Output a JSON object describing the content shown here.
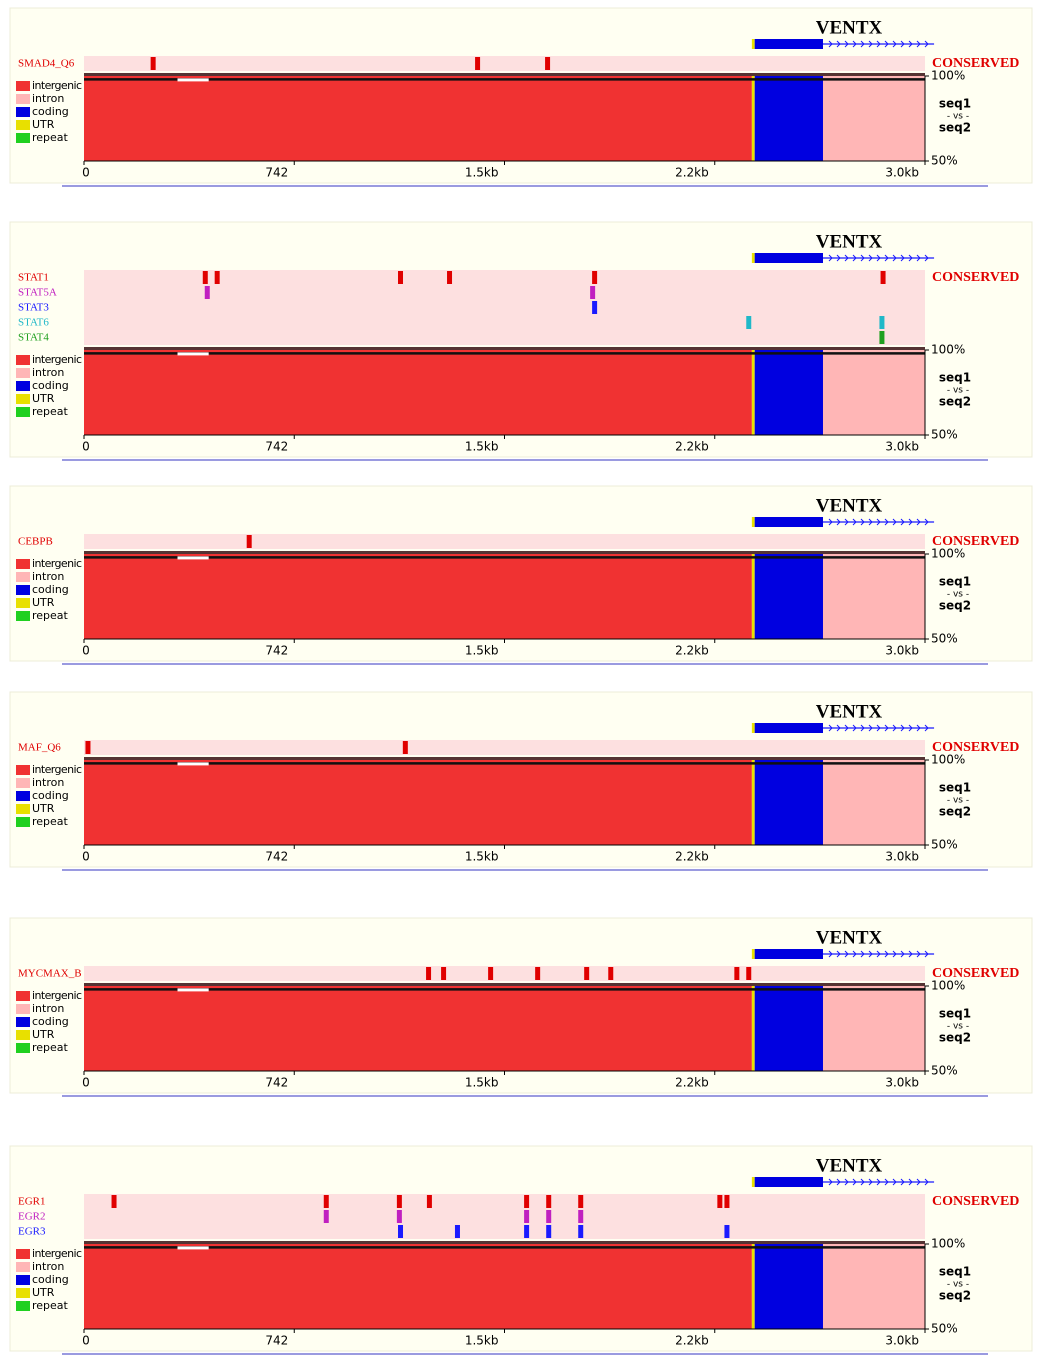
{
  "gene": {
    "name": "VENTX",
    "utr": [
      2357,
      2367
    ],
    "exon": [
      2367,
      2608
    ],
    "end": 3000
  },
  "legend": [
    {
      "label": "intergenic",
      "color": "#f03232"
    },
    {
      "label": "intron",
      "color": "#ffb6b6"
    },
    {
      "label": "coding",
      "color": "#0000e0"
    },
    {
      "label": "UTR",
      "color": "#e8e000"
    },
    {
      "label": "repeat",
      "color": "#20d020"
    }
  ],
  "xlim": [
    0,
    2968
  ],
  "xticks": [
    0,
    742,
    {
      "value": 1484,
      "label": "1.5kb"
    },
    {
      "value": 2226,
      "label": "2.2kb"
    },
    {
      "value": 2968,
      "label": "3.0kb"
    }
  ],
  "ylim": [
    50,
    100
  ],
  "yticks": [
    {
      "value": 100,
      "label": "100%"
    },
    {
      "value": 50,
      "label": "50%"
    }
  ],
  "conserved_label": "CONSERVED",
  "seq1": "seq1",
  "vs": "- vs -",
  "seq2": "seq2",
  "conservation": {
    "value": 98,
    "segments": [
      {
        "legend": 0,
        "start": 0,
        "end": 2357
      },
      {
        "legend": 3,
        "start": 2357,
        "end": 2367
      },
      {
        "legend": 2,
        "start": 2367,
        "end": 2608
      },
      {
        "legend": 1,
        "start": 2608,
        "end": 2968
      }
    ]
  },
  "panels": [
    {
      "tracks": [
        {
          "name": "SMAD4_Q6",
          "color": "#e00000",
          "sites": [
            244,
            1389,
            1636
          ]
        }
      ]
    },
    {
      "tracks": [
        {
          "name": "STAT1",
          "color": "#e00000",
          "sites": [
            428,
            470,
            1117,
            1290,
            1802,
            2820
          ]
        },
        {
          "name": "STAT5A",
          "color": "#c020c0",
          "sites": [
            435,
            1795
          ]
        },
        {
          "name": "STAT3",
          "color": "#1a1aff",
          "sites": [
            1802
          ]
        },
        {
          "name": "STAT6",
          "color": "#20b8c8",
          "sites": [
            2346,
            2816
          ]
        },
        {
          "name": "STAT4",
          "color": "#20a020",
          "sites": [
            2816
          ]
        }
      ]
    },
    {
      "tracks": [
        {
          "name": "CEBPB",
          "color": "#e00000",
          "sites": [
            583
          ]
        }
      ]
    },
    {
      "tracks": [
        {
          "name": "MAF_Q6",
          "color": "#e00000",
          "sites": [
            14,
            1134
          ]
        }
      ]
    },
    {
      "tracks": [
        {
          "name": "MYCMAX_B",
          "color": "#e00000",
          "sites": [
            1216,
            1269,
            1435,
            1601,
            1774,
            1859,
            2304,
            2346
          ]
        }
      ]
    },
    {
      "tracks": [
        {
          "name": "EGR1",
          "color": "#e00000",
          "sites": [
            106,
            855,
            1113,
            1219,
            1562,
            1640,
            1753,
            2244,
            2269
          ]
        },
        {
          "name": "EGR2",
          "color": "#c020c0",
          "sites": [
            855,
            1113,
            1562,
            1640,
            1753
          ]
        },
        {
          "name": "EGR3",
          "color": "#1a1aff",
          "sites": [
            1117,
            1318,
            1562,
            1640,
            1753,
            2269
          ]
        }
      ]
    }
  ]
}
